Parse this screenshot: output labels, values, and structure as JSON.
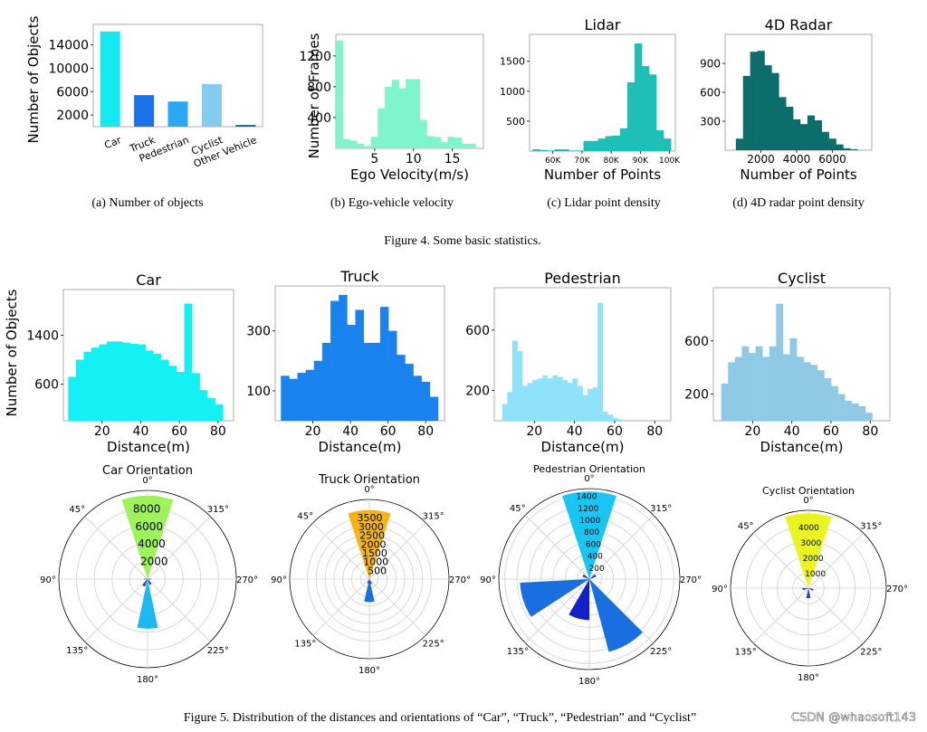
{
  "figure4": {
    "caption": "Figure 4.   Some basic statistics.",
    "subcaptions": [
      "(a) Number of objects",
      "(b) Ego-vehicle velocity",
      "(c) Lidar point density",
      "(d) 4D radar point density"
    ]
  },
  "figure5": {
    "caption": "Figure 5.   Distribution of the distances and orientations of “Car”, “Truck”, “Pedestrian” and “Cyclist”"
  },
  "watermark": "CSDN @whaosoft143",
  "chart_data": [
    {
      "id": "objects",
      "type": "bar",
      "title": "",
      "ylabel": "Number of Objects",
      "categories": [
        "Car",
        "Truck",
        "Pedestrian",
        "Cyclist",
        "Other Vehicle"
      ],
      "values": [
        16300,
        5400,
        4300,
        7300,
        300
      ],
      "colors": [
        "#14e9f0",
        "#1a73e8",
        "#2aa8f4",
        "#85cbee",
        "#1b6d8b"
      ],
      "ylim": [
        0,
        17500
      ],
      "yticks": [
        2000,
        6000,
        10000,
        14000
      ],
      "ytick_labels": [
        "2000",
        "6000",
        "10000",
        "14000"
      ]
    },
    {
      "id": "velocity",
      "type": "bar",
      "title": "",
      "xlabel": "Ego Velocity(m/s)",
      "ylabel": "Number of Frames",
      "color": "#7ff5cb",
      "xlim": [
        0,
        19
      ],
      "ylim": [
        0,
        1480
      ],
      "bin_edges": [
        0,
        0.9,
        1.8,
        2.7,
        3.6,
        4.5,
        5.4,
        6.3,
        7.2,
        8.1,
        9.0,
        9.9,
        10.8,
        11.7,
        12.6,
        13.5,
        14.4,
        15.3,
        16.2,
        17.1,
        18.0
      ],
      "values": [
        1400,
        120,
        100,
        60,
        30,
        150,
        520,
        800,
        890,
        780,
        900,
        900,
        370,
        160,
        150,
        80,
        150,
        140,
        60,
        60
      ],
      "xticks": [
        5,
        10,
        15
      ],
      "yticks": [
        400,
        800,
        1200
      ],
      "ytick_labels": [
        "400",
        "800",
        "1200"
      ]
    },
    {
      "id": "lidar",
      "type": "bar",
      "title": "Lidar",
      "xlabel": "Number of Points",
      "color": "#1dbfb7",
      "xlim": [
        52000,
        102000
      ],
      "ylim": [
        0,
        1950
      ],
      "bin_edges": [
        53000,
        55500,
        58000,
        60500,
        63000,
        65500,
        68000,
        70500,
        73000,
        75500,
        78000,
        80500,
        83000,
        85500,
        88000,
        90500,
        93000,
        95500,
        98000,
        100500
      ],
      "values": [
        30,
        20,
        10,
        30,
        30,
        10,
        10,
        170,
        170,
        210,
        250,
        260,
        380,
        1150,
        1800,
        1420,
        1280,
        350,
        210
      ],
      "xticks": [
        60000,
        70000,
        80000,
        90000,
        100000
      ],
      "xtick_labels": [
        "60K",
        "70K",
        "80K",
        "90K",
        "100K"
      ],
      "yticks": [
        500,
        1000,
        1500
      ],
      "ytick_labels": [
        "500",
        "1000",
        "1500"
      ]
    },
    {
      "id": "radar",
      "type": "bar",
      "title": "4D Radar",
      "xlabel": "Number of Points",
      "color": "#0b6e6a",
      "xlim": [
        0,
        8200
      ],
      "ylim": [
        0,
        1200
      ],
      "bin_edges": [
        600,
        1000,
        1400,
        1800,
        2200,
        2600,
        3000,
        3400,
        3800,
        4200,
        4600,
        5000,
        5400,
        5800,
        6200,
        6600,
        7000,
        7400
      ],
      "values": [
        120,
        770,
        1020,
        1030,
        880,
        800,
        550,
        450,
        320,
        270,
        360,
        310,
        190,
        120,
        60,
        20,
        10
      ],
      "xticks": [
        2000,
        4000,
        6000
      ],
      "yticks": [
        300,
        600,
        900
      ],
      "ytick_labels": [
        "300",
        "600",
        "900"
      ]
    },
    {
      "id": "car-dist",
      "type": "bar",
      "title": "Car",
      "xlabel": "Distance(m)",
      "ylabel": "Number of Objects",
      "color": "#14f1f4",
      "xlim": [
        0,
        88
      ],
      "ylim": [
        0,
        2150
      ],
      "bin_edges": [
        2.5,
        6.5,
        10.5,
        14.5,
        18.5,
        22.5,
        26.5,
        30.5,
        34.5,
        38.5,
        42.5,
        46.5,
        50.5,
        54.5,
        58.5,
        62.5,
        66.5,
        70.5,
        74.5,
        78.5,
        82.5
      ],
      "values": [
        720,
        1000,
        1130,
        1200,
        1250,
        1300,
        1300,
        1280,
        1260,
        1250,
        1150,
        1100,
        1000,
        900,
        800,
        1920,
        780,
        500,
        370,
        270
      ],
      "xticks": [
        20,
        40,
        60,
        80
      ],
      "yticks": [
        600,
        1400
      ],
      "ytick_labels": [
        "600",
        "1400"
      ]
    },
    {
      "id": "truck-dist",
      "type": "bar",
      "title": "Truck",
      "xlabel": "Distance(m)",
      "color": "#1a82ee",
      "xlim": [
        0,
        90
      ],
      "ylim": [
        0,
        450
      ],
      "bin_edges": [
        3,
        7.4,
        11.8,
        16.2,
        20.6,
        25,
        29.4,
        33.8,
        38.2,
        42.6,
        47,
        51.4,
        55.8,
        60.2,
        64.6,
        69,
        73.4,
        77.8,
        82.2,
        86.6
      ],
      "values": [
        150,
        140,
        160,
        170,
        200,
        260,
        400,
        420,
        320,
        370,
        260,
        260,
        380,
        300,
        220,
        190,
        150,
        130,
        80
      ],
      "xticks": [
        20,
        40,
        60,
        80
      ],
      "yticks": [
        100,
        300
      ],
      "ytick_labels": [
        "100",
        "300"
      ]
    },
    {
      "id": "pedestrian-dist",
      "type": "bar",
      "title": "Pedestrian",
      "xlabel": "Distance(m)",
      "color": "#8ee2fa",
      "xlim": [
        0,
        88
      ],
      "ylim": [
        0,
        880
      ],
      "bin_edges": [
        4,
        6.5,
        9,
        11.5,
        14,
        16.5,
        19,
        21.5,
        24,
        26.5,
        29,
        31.5,
        34,
        36.5,
        39,
        41.5,
        44,
        46.5,
        49,
        51.5,
        54,
        56.5,
        59,
        61.5,
        64
      ],
      "values": [
        110,
        190,
        530,
        460,
        230,
        250,
        270,
        280,
        300,
        280,
        300,
        290,
        270,
        250,
        280,
        230,
        170,
        210,
        220,
        780,
        60,
        40,
        20,
        10
      ],
      "xticks": [
        20,
        40,
        60,
        80
      ],
      "yticks": [
        200,
        600
      ],
      "ytick_labels": [
        "200",
        "600"
      ]
    },
    {
      "id": "cyclist-dist",
      "type": "bar",
      "title": "Cyclist",
      "xlabel": "Distance(m)",
      "color": "#8fc9e6",
      "xlim": [
        0,
        90
      ],
      "ylim": [
        0,
        1000
      ],
      "bin_edges": [
        4,
        7.5,
        11,
        14.5,
        18,
        21.5,
        25,
        28.5,
        32,
        35.5,
        39,
        42.5,
        46,
        49.5,
        53,
        56.5,
        60,
        63.5,
        67,
        70.5,
        74,
        77.5,
        81
      ],
      "values": [
        280,
        440,
        480,
        560,
        510,
        560,
        480,
        560,
        880,
        500,
        620,
        480,
        440,
        420,
        380,
        320,
        260,
        200,
        150,
        130,
        110,
        60
      ],
      "xticks": [
        20,
        40,
        60,
        80
      ],
      "yticks": [
        200,
        600
      ],
      "ytick_labels": [
        "200",
        "600"
      ]
    },
    {
      "id": "car-orientation",
      "type": "polar-bar",
      "title": "Car Orientation",
      "angle_labels": [
        "0°",
        "45°",
        "90°",
        "135°",
        "180°",
        "225°",
        "270°",
        "315°"
      ],
      "rmax": 10000,
      "rticks": [
        2000,
        4000,
        6000,
        8000
      ],
      "bars": [
        {
          "angle": 0,
          "value": 9400,
          "width": 36,
          "color": "#9ff35a"
        },
        {
          "angle": 180,
          "value": 5600,
          "width": 24,
          "color": "#1cb8ef"
        },
        {
          "angle": 150,
          "value": 900,
          "width": 22,
          "color": "#1a3fc9"
        },
        {
          "angle": 210,
          "value": 700,
          "width": 22,
          "color": "#1a3fc9"
        },
        {
          "angle": 90,
          "value": 350,
          "width": 22,
          "color": "#1a3fc9"
        },
        {
          "angle": 270,
          "value": 350,
          "width": 22,
          "color": "#1a3fc9"
        }
      ]
    },
    {
      "id": "truck-orientation",
      "type": "polar-bar",
      "title": "Truck Orientation",
      "angle_labels": [
        "0°",
        "45°",
        "90°",
        "135°",
        "180°",
        "225°",
        "270°",
        "315°"
      ],
      "rmax": 4500,
      "rticks": [
        500,
        1000,
        1500,
        2000,
        2500,
        3000,
        3500
      ],
      "bars": [
        {
          "angle": 0,
          "value": 3900,
          "width": 36,
          "color": "#f5b414"
        },
        {
          "angle": 180,
          "value": 1300,
          "width": 26,
          "color": "#1a6fe0"
        },
        {
          "angle": 200,
          "value": 300,
          "width": 22,
          "color": "#1a3fc9"
        },
        {
          "angle": 160,
          "value": 250,
          "width": 22,
          "color": "#1a3fc9"
        }
      ]
    },
    {
      "id": "pedestrian-orientation",
      "type": "polar-bar",
      "title": "Pedestrian Orientation",
      "angle_labels": [
        "0°",
        "45°",
        "90°",
        "135°",
        "180°",
        "225°",
        "270°",
        "315°"
      ],
      "rmax": 1500,
      "rticks": [
        200,
        400,
        600,
        800,
        1000,
        1200,
        1400
      ],
      "bars": [
        {
          "angle": 0,
          "value": 1450,
          "width": 36,
          "color": "#19c5f2"
        },
        {
          "angle": 108,
          "value": 1150,
          "width": 30,
          "color": "#1a6fe0"
        },
        {
          "angle": 210,
          "value": 1250,
          "width": 30,
          "color": "#1a6fe0"
        },
        {
          "angle": 165,
          "value": 680,
          "width": 30,
          "color": "#1421c8"
        },
        {
          "angle": 300,
          "value": 120,
          "width": 22,
          "color": "#1a3fc9"
        },
        {
          "angle": 60,
          "value": 120,
          "width": 22,
          "color": "#1a3fc9"
        }
      ]
    },
    {
      "id": "cyclist-orientation",
      "type": "polar-bar",
      "title": "Cyclist Orientation",
      "angle_labels": [
        "0°",
        "45°",
        "90°",
        "135°",
        "180°",
        "225°",
        "270°",
        "315°"
      ],
      "rmax": 5000,
      "rticks": [
        1000,
        2000,
        3000,
        4000
      ],
      "bars": [
        {
          "angle": 0,
          "value": 4800,
          "width": 36,
          "color": "#eaf41e"
        },
        {
          "angle": 180,
          "value": 650,
          "width": 24,
          "color": "#1a3fc9"
        },
        {
          "angle": 100,
          "value": 380,
          "width": 22,
          "color": "#1a3fc9"
        },
        {
          "angle": 250,
          "value": 330,
          "width": 22,
          "color": "#1a3fc9"
        }
      ]
    }
  ]
}
